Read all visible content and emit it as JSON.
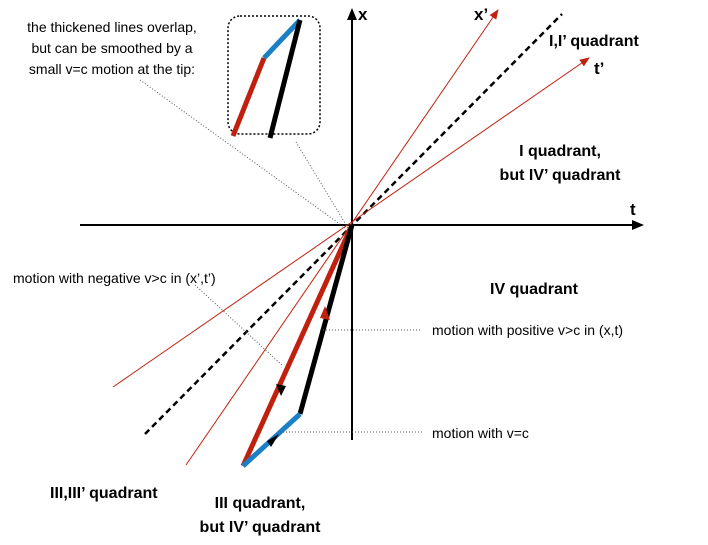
{
  "axes": {
    "x_label": "x",
    "t_label": "t",
    "x_prime_label": "x’",
    "t_prime_label": "t’"
  },
  "quadrants": {
    "q1_prime": "I,I’ quadrant",
    "q1_line1": "I quadrant,",
    "q1_line2": "but IV’ quadrant",
    "q4": "IV quadrant",
    "q3_prime": "III,III’ quadrant",
    "q3_line1": "III quadrant,",
    "q3_line2": "but IV’ quadrant"
  },
  "annotations": {
    "inset_line1": "the thickened lines overlap,",
    "inset_line2": "but can be smoothed by a",
    "inset_line3": "small v=c motion at the tip:",
    "negative_motion": "motion with negative v>c in (x’,t’)",
    "positive_motion": "motion with positive v>c in (x,t)",
    "light_motion": "motion with v=c"
  },
  "colors": {
    "axis": "#000000",
    "primed_axis": "#c0200e",
    "light_segment": "#1a7fc4",
    "light_cone": "#000000"
  }
}
